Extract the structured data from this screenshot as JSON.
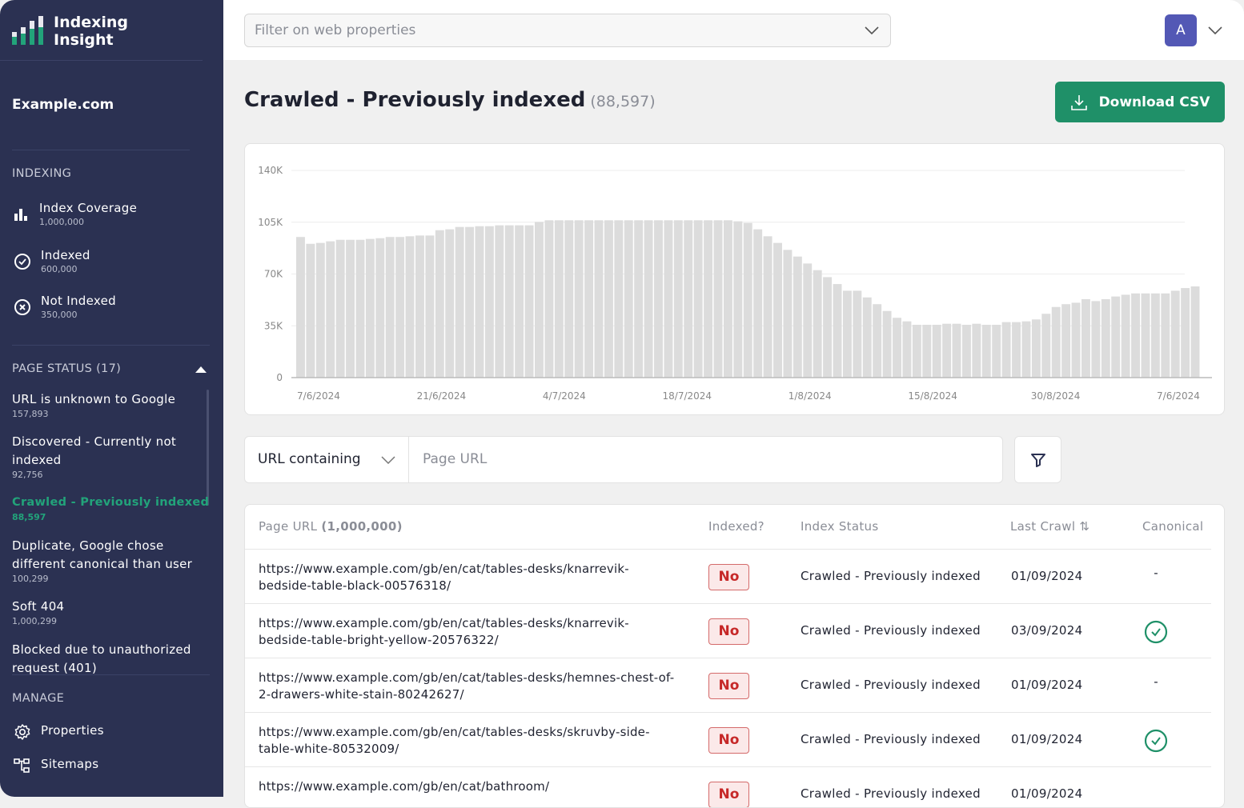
{
  "app": {
    "name": "Indexing Insight",
    "logo_lines": [
      "Indexing",
      "Insight"
    ]
  },
  "sidebar": {
    "property": "Example.com",
    "indexing_heading": "INDEXING",
    "indexing_items": [
      {
        "label": "Index Coverage",
        "count": "1,000,000",
        "icon": "bar-chart-icon"
      },
      {
        "label": "Indexed",
        "count": "600,000",
        "icon": "check-circle-icon"
      },
      {
        "label": "Not Indexed",
        "count": "350,000",
        "icon": "x-circle-icon"
      }
    ],
    "page_status_heading": "PAGE STATUS (17)",
    "page_status_items": [
      {
        "label": "URL is unknown to Google",
        "count": "157,893"
      },
      {
        "label": "Discovered - Currently not indexed",
        "count": "92,756"
      },
      {
        "label": "Crawled - Previously indexed",
        "count": "88,597",
        "active": true
      },
      {
        "label": "Duplicate, Google chose different canonical than user",
        "count": "100,299"
      },
      {
        "label": "Soft 404",
        "count": "1,000,299"
      },
      {
        "label": "Blocked due to unauthorized request (401)",
        "count": ""
      }
    ],
    "manage_heading": "MANAGE",
    "manage_items": [
      {
        "label": "Properties",
        "icon": "gear-icon"
      },
      {
        "label": "Sitemaps",
        "icon": "sitemap-icon"
      }
    ]
  },
  "header": {
    "filter_placeholder": "Filter on web properties",
    "avatar": "A"
  },
  "page": {
    "title": "Crawled - Previously indexed",
    "count": "(88,597)",
    "download": "Download CSV"
  },
  "colors": {
    "sidebar": "#2b3152",
    "accent": "#1f9068",
    "active": "#22a37a",
    "avatar": "#5358b5",
    "bar": "#dcdcdc",
    "no_badge": "#c62828"
  },
  "chart_data": {
    "type": "bar",
    "ylim": [
      0,
      140000
    ],
    "y_ticks": [
      {
        "v": 0,
        "label": "0"
      },
      {
        "v": 35000,
        "label": "35K"
      },
      {
        "v": 70000,
        "label": "70K"
      },
      {
        "v": 105000,
        "label": "105K"
      },
      {
        "v": 140000,
        "label": "140K"
      }
    ],
    "x_tick_labels": [
      "7/6/2024",
      "21/6/2024",
      "4/7/2024",
      "18/7/2024",
      "1/8/2024",
      "15/8/2024",
      "30/8/2024",
      "7/6/2024"
    ],
    "grid": true,
    "values": [
      95000,
      90400,
      91000,
      92100,
      93100,
      93100,
      93100,
      93700,
      94200,
      95000,
      95000,
      95500,
      96000,
      96000,
      99600,
      100200,
      101800,
      101800,
      102300,
      102300,
      102900,
      102900,
      102900,
      102900,
      105200,
      106300,
      106300,
      106300,
      106300,
      106300,
      106300,
      106300,
      106300,
      106300,
      106300,
      106300,
      106300,
      106300,
      106300,
      106300,
      106300,
      106300,
      106300,
      106300,
      105600,
      104500,
      100200,
      95500,
      91000,
      86300,
      81800,
      77100,
      72600,
      67900,
      63200,
      58700,
      58700,
      54200,
      49600,
      45000,
      40400,
      38000,
      35700,
      35700,
      35700,
      36400,
      36400,
      35700,
      36400,
      35700,
      35700,
      37500,
      37500,
      38000,
      39300,
      43100,
      47700,
      49600,
      50600,
      53000,
      51700,
      53000,
      54800,
      56000,
      56900,
      56900,
      56900,
      56900,
      58700,
      60500,
      61600
    ]
  },
  "url_filter": {
    "mode": "URL containing",
    "placeholder": "Page URL"
  },
  "table": {
    "headers": {
      "url": "Page URL",
      "url_count": "(1,000,000)",
      "indexed": "Indexed?",
      "status": "Index Status",
      "last_crawl": "Last Crawl",
      "canonical": "Canonical"
    },
    "rows": [
      {
        "url": "https://www.example.com/gb/en/cat/tables-desks/knarrevik-bedside-table-black-00576318/",
        "indexed": "No",
        "status": "Crawled - Previously indexed",
        "last_crawl": "01/09/2024",
        "canonical": "-"
      },
      {
        "url": "https://www.example.com/gb/en/cat/tables-desks/knarrevik-bedside-table-bright-yellow-20576322/",
        "indexed": "No",
        "status": "Crawled - Previously indexed",
        "last_crawl": "03/09/2024",
        "canonical": "check"
      },
      {
        "url": "https://www.example.com/gb/en/cat/tables-desks/hemnes-chest-of-2-drawers-white-stain-80242627/",
        "indexed": "No",
        "status": "Crawled - Previously indexed",
        "last_crawl": "01/09/2024",
        "canonical": "-"
      },
      {
        "url": "https://www.example.com/gb/en/cat/tables-desks/skruvby-side-table-white-80532009/",
        "indexed": "No",
        "status": "Crawled - Previously indexed",
        "last_crawl": "01/09/2024",
        "canonical": "check"
      },
      {
        "url": "https://www.example.com/gb/en/cat/bathroom/",
        "indexed": "No",
        "status": "Crawled - Previously indexed",
        "last_crawl": "01/09/2024",
        "canonical": ""
      }
    ]
  }
}
